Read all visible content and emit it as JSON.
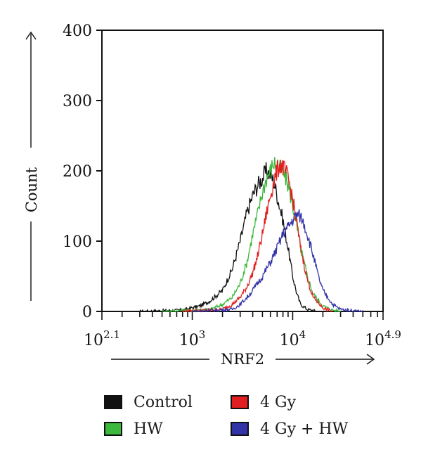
{
  "chart_data": {
    "type": "line",
    "xlabel": "NRF2",
    "ylabel": "Count",
    "x_scale": "log",
    "xlim": [
      125.89,
      79432.82
    ],
    "ylim": [
      0,
      400
    ],
    "y_ticks": [
      0,
      100,
      200,
      300,
      400
    ],
    "x_ticks": [
      {
        "value": 125.89,
        "base": "10",
        "exp": "2.1"
      },
      {
        "value": 1000,
        "base": "10",
        "exp": "3"
      },
      {
        "value": 10000,
        "base": "10",
        "exp": "4"
      },
      {
        "value": 79432.82,
        "base": "10",
        "exp": "4.9"
      }
    ],
    "legend_position": "bottom",
    "series": [
      {
        "name": "Control",
        "color": "#111111",
        "x": [
          300,
          800,
          1200,
          1500,
          2000,
          2500,
          3000,
          3500,
          4000,
          4500,
          5000,
          5500,
          6000,
          6500,
          7000,
          8000,
          9000,
          10000,
          11000,
          12000,
          14000,
          18000
        ],
        "y": [
          0,
          2,
          8,
          15,
          30,
          60,
          100,
          140,
          165,
          180,
          190,
          200,
          195,
          185,
          165,
          130,
          90,
          50,
          25,
          10,
          3,
          0
        ]
      },
      {
        "name": "HW",
        "color": "#3cb83c",
        "x": [
          500,
          1500,
          2000,
          2500,
          3000,
          3500,
          4000,
          4500,
          5000,
          5500,
          6000,
          6500,
          7000,
          8000,
          9000,
          10000,
          11000,
          12000,
          14000,
          16000,
          20000,
          25000,
          30000
        ],
        "y": [
          0,
          3,
          10,
          20,
          40,
          70,
          110,
          140,
          170,
          190,
          200,
          212,
          205,
          200,
          180,
          150,
          120,
          90,
          50,
          25,
          8,
          2,
          0
        ]
      },
      {
        "name": "4 Gy",
        "color": "#e02020",
        "x": [
          800,
          2000,
          2500,
          3000,
          3500,
          4000,
          4500,
          5000,
          5500,
          6000,
          6500,
          7000,
          7500,
          8000,
          9000,
          10000,
          11000,
          12000,
          14000,
          16000,
          20000,
          25000
        ],
        "y": [
          0,
          3,
          10,
          20,
          35,
          55,
          80,
          110,
          140,
          165,
          185,
          200,
          210,
          205,
          190,
          160,
          125,
          90,
          45,
          20,
          5,
          0
        ]
      },
      {
        "name": "4 Gy + HW",
        "color": "#3333a8",
        "x": [
          1000,
          2500,
          3000,
          3500,
          4000,
          5000,
          6000,
          7000,
          8000,
          9000,
          10000,
          11000,
          12000,
          13000,
          14000,
          16000,
          18000,
          20000,
          25000,
          30000,
          40000,
          50000
        ],
        "y": [
          0,
          3,
          10,
          20,
          30,
          50,
          70,
          90,
          110,
          120,
          130,
          138,
          135,
          125,
          110,
          80,
          50,
          30,
          10,
          3,
          1,
          0
        ]
      }
    ]
  }
}
